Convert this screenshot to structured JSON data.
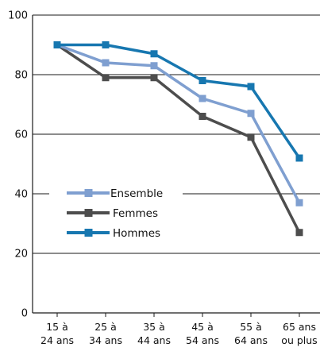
{
  "chart_data": {
    "type": "line",
    "title": "",
    "xlabel": "",
    "ylabel": "",
    "ylim": [
      0,
      100
    ],
    "y_ticks": [
      "0",
      "20",
      "40",
      "60",
      "80",
      "100"
    ],
    "categories": [
      [
        "15 à",
        "24 ans"
      ],
      [
        "25 à",
        "34 ans"
      ],
      [
        "35 à",
        "44 ans"
      ],
      [
        "45 à",
        "54 ans"
      ],
      [
        "55 à",
        "64 ans"
      ],
      [
        "65 ans",
        "ou plus"
      ]
    ],
    "grid": "horizontal",
    "legend_position": "left-middle",
    "series": [
      {
        "name": "Ensemble",
        "color": "#7f9fd0",
        "values": [
          90,
          84,
          83,
          72,
          67,
          37
        ]
      },
      {
        "name": "Femmes",
        "color": "#4d4d4d",
        "values": [
          90,
          79,
          79,
          66,
          59,
          27
        ]
      },
      {
        "name": "Hommes",
        "color": "#1777b0",
        "values": [
          90,
          90,
          87,
          78,
          76,
          52
        ]
      }
    ]
  }
}
